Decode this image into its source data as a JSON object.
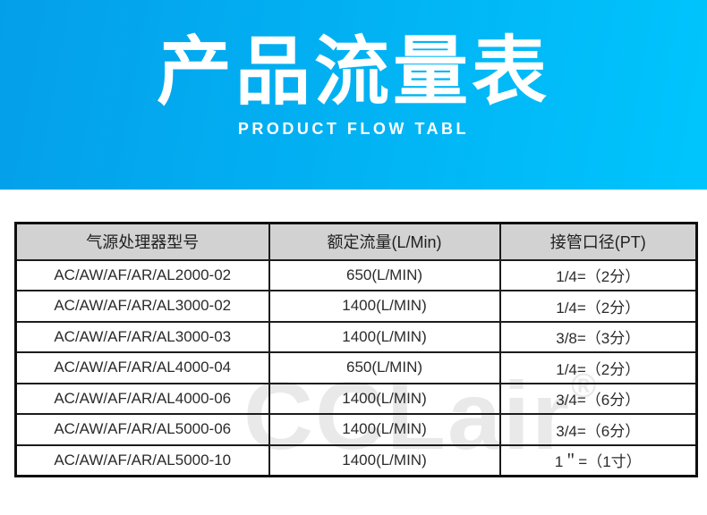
{
  "header": {
    "title": "产品流量表",
    "subtitle": "PRODUCT FLOW TABL",
    "gradient_left": "#049fe9",
    "gradient_right": "#00c5fd"
  },
  "watermark": {
    "text": "CCLair",
    "registered_mark": "®",
    "color": "#e9e9e9"
  },
  "table": {
    "header_bg": "#d2d2d2",
    "columns": [
      "气源处理器型号",
      "额定流量(L/Min)",
      "接管口径(PT)"
    ],
    "rows": [
      [
        "AC/AW/AF/AR/AL2000-02",
        "650(L/MIN)",
        "1/4=（2分）"
      ],
      [
        "AC/AW/AF/AR/AL3000-02",
        "1400(L/MIN)",
        "1/4=（2分）"
      ],
      [
        "AC/AW/AF/AR/AL3000-03",
        "1400(L/MIN)",
        "3/8=（3分）"
      ],
      [
        "AC/AW/AF/AR/AL4000-04",
        "650(L/MIN)",
        "1/4=（2分）"
      ],
      [
        "AC/AW/AF/AR/AL4000-06",
        "1400(L/MIN)",
        "3/4=（6分）"
      ],
      [
        "AC/AW/AF/AR/AL5000-06",
        "1400(L/MIN)",
        "3/4=（6分）"
      ],
      [
        "AC/AW/AF/AR/AL5000-10",
        "1400(L/MIN)",
        "1＂=（1寸）"
      ]
    ]
  }
}
